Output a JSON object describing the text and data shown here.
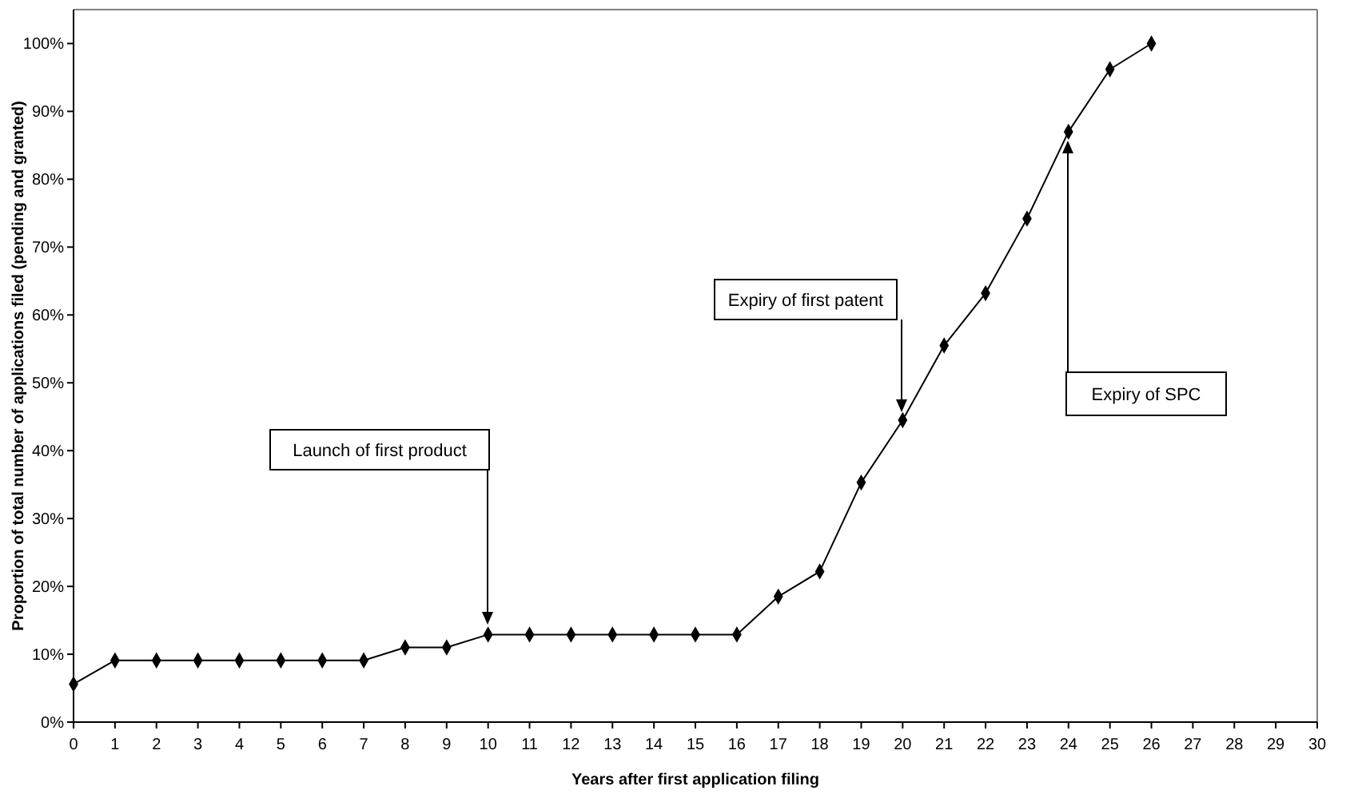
{
  "chart_data": {
    "type": "line",
    "xlabel": "Years after first application filing",
    "ylabel": "Proportion of total number of applications filed (pending and granted)",
    "x": [
      0,
      1,
      2,
      3,
      4,
      5,
      6,
      7,
      8,
      9,
      10,
      11,
      12,
      13,
      14,
      15,
      16,
      17,
      18,
      19,
      20,
      21,
      22,
      23,
      24,
      25,
      26
    ],
    "series": [
      {
        "color": "#000000",
        "values": [
          5.6,
          9.1,
          9.1,
          9.1,
          9.1,
          9.1,
          9.1,
          9.1,
          11,
          11,
          12.9,
          12.9,
          12.9,
          12.9,
          12.9,
          12.9,
          12.9,
          18.5,
          22.2,
          35.3,
          44.5,
          55.5,
          63.2,
          74.2,
          87,
          96.2,
          100
        ]
      }
    ],
    "xlim": [
      0,
      30
    ],
    "xticks": [
      0,
      1,
      2,
      3,
      4,
      5,
      6,
      7,
      8,
      9,
      10,
      11,
      12,
      13,
      14,
      15,
      16,
      17,
      18,
      19,
      20,
      21,
      22,
      23,
      24,
      25,
      26,
      27,
      28,
      29,
      30
    ],
    "ylim": [
      0,
      105
    ],
    "yticks": [
      {
        "value": 0,
        "label": "0%"
      },
      {
        "value": 10,
        "label": "10%"
      },
      {
        "value": 20,
        "label": "20%"
      },
      {
        "value": 30,
        "label": "30%"
      },
      {
        "value": 40,
        "label": "40%"
      },
      {
        "value": 50,
        "label": "50%"
      },
      {
        "value": 60,
        "label": "60%"
      },
      {
        "value": 70,
        "label": "70%"
      },
      {
        "value": 80,
        "label": "80%"
      },
      {
        "value": 90,
        "label": "90%"
      },
      {
        "value": 100,
        "label": "100%"
      }
    ],
    "marker": "diamond",
    "line_style": "solid",
    "grid": false,
    "annotations": [
      "Launch of first product",
      "Expiry of first patent",
      "Expiry of SPC"
    ]
  }
}
